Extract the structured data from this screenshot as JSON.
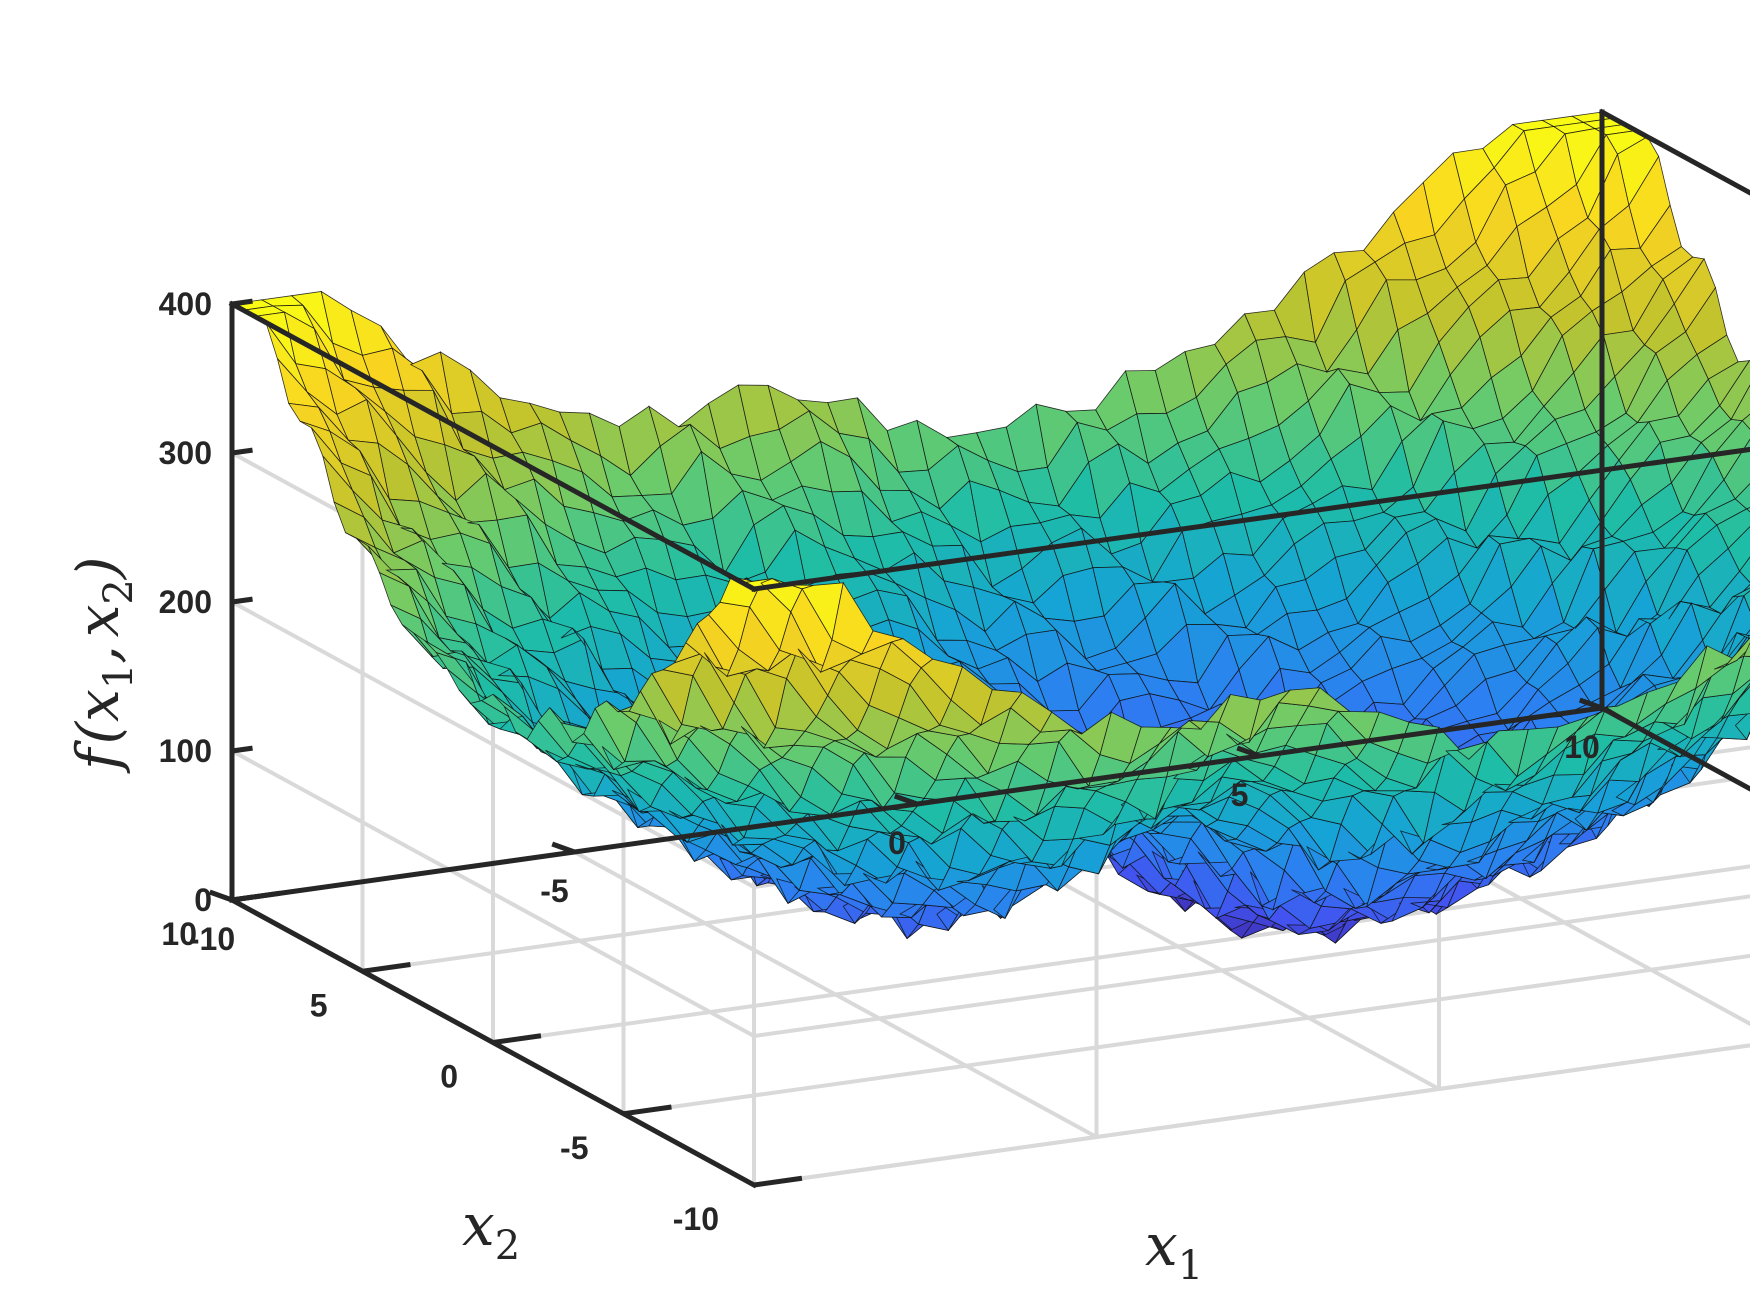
{
  "chart_data": {
    "type": "surface",
    "title": "",
    "xlabel": "x",
    "xlabel_sub": "1",
    "ylabel": "x",
    "ylabel_sub": "2",
    "zlabel_fn": "f",
    "zlabel_open": "(",
    "zlabel_x": "x",
    "zlabel_sub1": "1",
    "zlabel_comma": ",",
    "zlabel_sub2": "2",
    "zlabel_close": ")",
    "xlim": [
      -10,
      10
    ],
    "ylim": [
      -10,
      10
    ],
    "zlim": [
      0,
      400
    ],
    "xticks": [
      -10,
      -5,
      0,
      5,
      10
    ],
    "yticks": [
      -10,
      -5,
      0,
      5,
      10
    ],
    "zticks": [
      0,
      100,
      200,
      300,
      400
    ],
    "xtick_labels": [
      "-10",
      "-5",
      "0",
      "5",
      "10"
    ],
    "ytick_labels": [
      "-10",
      "-5",
      "0",
      "5",
      "10"
    ],
    "ztick_labels": [
      "0",
      "100",
      "200",
      "300",
      "400"
    ],
    "grid": true,
    "colormap": "parula",
    "colormap_stops": [
      "#3e26a8",
      "#4253f0",
      "#2c80f1",
      "#16a3d5",
      "#1ebda7",
      "#68cb6d",
      "#c2c32d",
      "#f9d421",
      "#f9fb15"
    ],
    "surface_description_values": {
      "min_value_at": [
        0,
        0
      ],
      "min_value": 0,
      "corner_values": {
        "x-10_y-10": 300,
        "x-10_y10": 340,
        "x10_y-10": 320,
        "x10_y10": 400
      },
      "ridge_near_x": -2,
      "ridge_height": 160
    }
  }
}
